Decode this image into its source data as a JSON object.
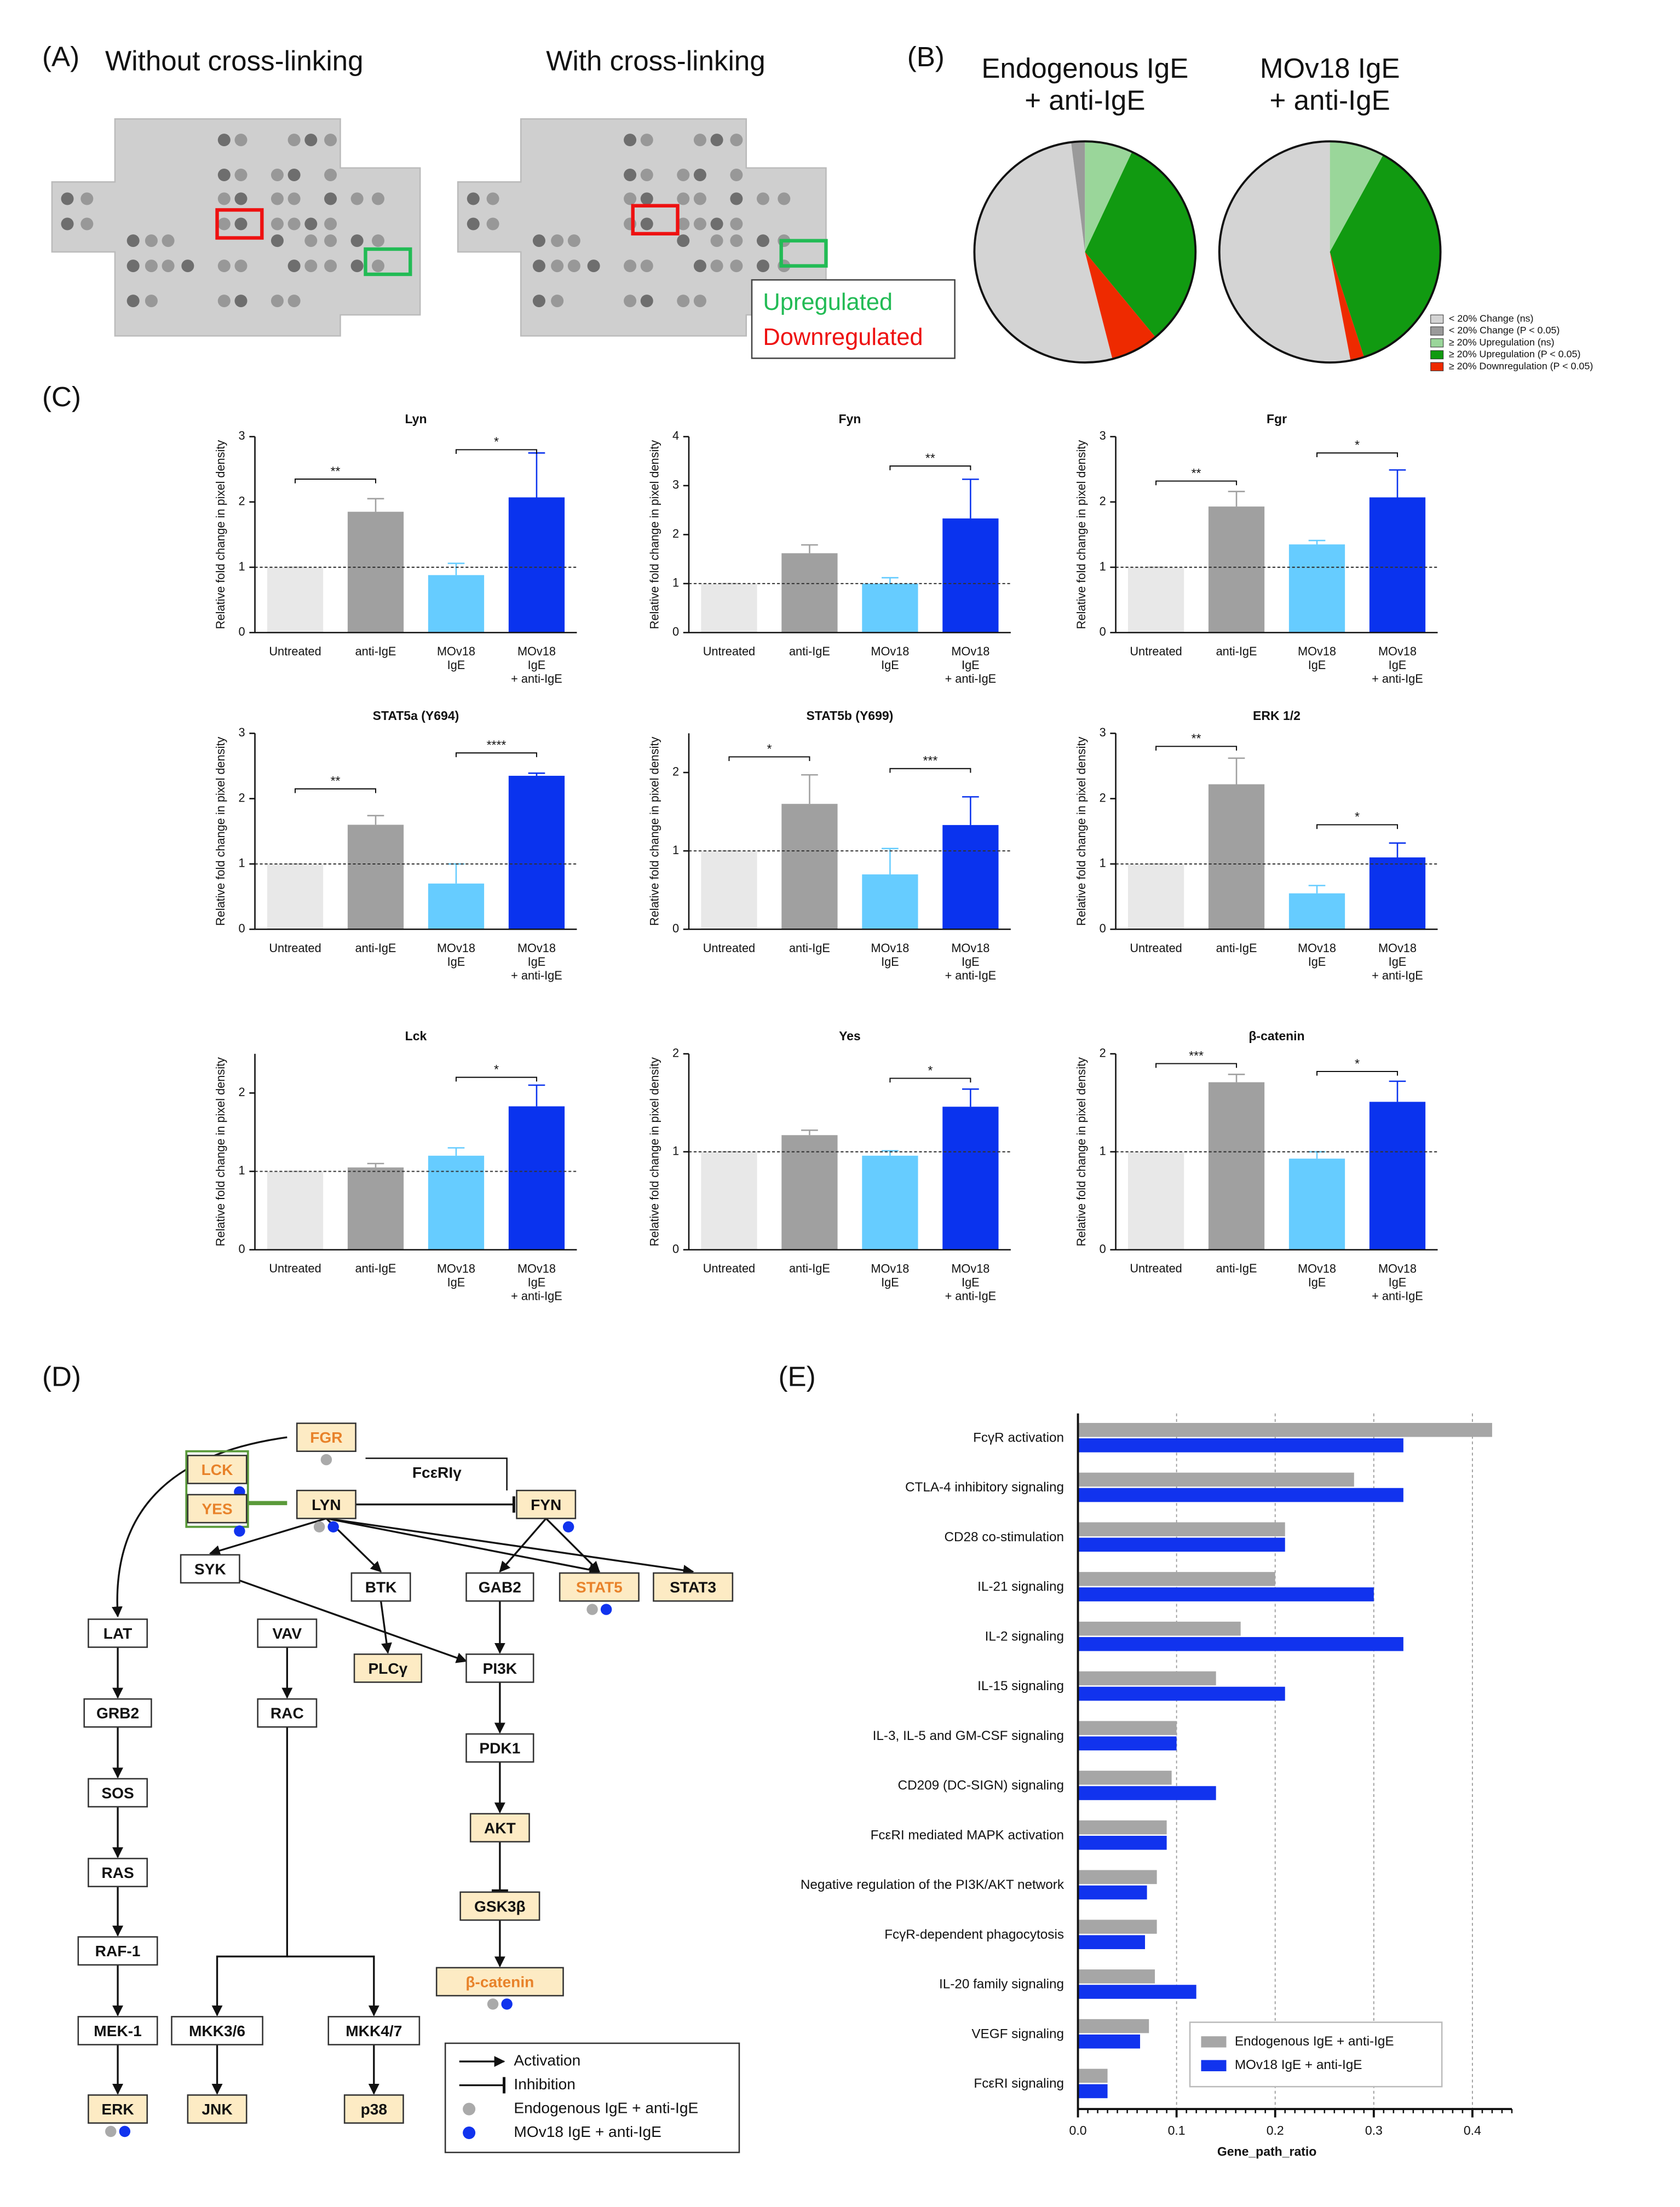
{
  "panel_labels": [
    "(A)",
    "(B)",
    "(C)",
    "(D)",
    "(E)"
  ],
  "panel_a": {
    "titles": [
      "Without cross-linking",
      "With cross-linking"
    ],
    "legend": [
      {
        "label": "Upregulated",
        "color": "#22bb55"
      },
      {
        "label": "Downregulated",
        "color": "#ee1111"
      }
    ]
  },
  "chart_data": [
    {
      "type": "pie",
      "categories": [
        "< 20% Change (ns)",
        "< 20% Change (P < 0.05)",
        "≥ 20% Upregulation (ns)",
        "≥ 20% Upregulation (P < 0.05)",
        "≥ 20% Downregulation (P < 0.05)"
      ],
      "colors": [
        "#d4d4d4",
        "#9a9a9a",
        "#9ad69a",
        "#119a11",
        "#ee2a00"
      ],
      "series": [
        {
          "name": "Endogenous IgE\n+ anti-IgE",
          "values": [
            52,
            2,
            7,
            32,
            7
          ]
        },
        {
          "name": "MOv18 IgE\n+ anti-IgE",
          "values": [
            53,
            0,
            8,
            37,
            2
          ]
        }
      ]
    },
    {
      "type": "bar",
      "title": "Lyn",
      "ylabel": "Relative fold change in pixel density",
      "categories": [
        "Untreated",
        "anti-IgE",
        "MOv18\nIgE",
        "MOv18\nIgE\n+ anti-IgE"
      ],
      "colors": [
        "#e8e8e8",
        "#a0a0a0",
        "#66ccff",
        "#0a33ee"
      ],
      "values": [
        1,
        1.85,
        0.88,
        2.07
      ],
      "errors": [
        0,
        0.2,
        0.18,
        0.68
      ],
      "ylim": [
        0,
        3
      ],
      "yticks": [
        0,
        1,
        2,
        3
      ],
      "reference_line": 1,
      "annotations": [
        {
          "between": [
            0,
            1
          ],
          "y": 2.35,
          "label": "**"
        },
        {
          "between": [
            2,
            3
          ],
          "y": 2.8,
          "label": "*"
        }
      ]
    },
    {
      "type": "bar",
      "title": "Fyn",
      "ylabel": "Relative fold change in pixel density",
      "categories": [
        "Untreated",
        "anti-IgE",
        "MOv18\nIgE",
        "MOv18\nIgE\n+ anti-IgE"
      ],
      "colors": [
        "#e8e8e8",
        "#a0a0a0",
        "#66ccff",
        "#0a33ee"
      ],
      "values": [
        1,
        1.62,
        1.0,
        2.33
      ],
      "errors": [
        0,
        0.17,
        0.12,
        0.8
      ],
      "ylim": [
        0,
        4
      ],
      "yticks": [
        0,
        1,
        2,
        3,
        4
      ],
      "reference_line": 1,
      "annotations": [
        {
          "between": [
            2,
            3
          ],
          "y": 3.4,
          "label": "**"
        }
      ]
    },
    {
      "type": "bar",
      "title": "Fgr",
      "ylabel": "Relative fold change in pixel density",
      "categories": [
        "Untreated",
        "anti-IgE",
        "MOv18\nIgE",
        "MOv18\nIgE\n+ anti-IgE"
      ],
      "colors": [
        "#e8e8e8",
        "#a0a0a0",
        "#66ccff",
        "#0a33ee"
      ],
      "values": [
        1,
        1.93,
        1.35,
        2.07
      ],
      "errors": [
        0,
        0.23,
        0.06,
        0.42
      ],
      "ylim": [
        0,
        3
      ],
      "yticks": [
        0,
        1,
        2,
        3
      ],
      "reference_line": 1,
      "annotations": [
        {
          "between": [
            0,
            1
          ],
          "y": 2.32,
          "label": "**"
        },
        {
          "between": [
            2,
            3
          ],
          "y": 2.75,
          "label": "*"
        }
      ]
    },
    {
      "type": "bar",
      "title": "STAT5a (Y694)",
      "ylabel": "Relative fold change in pixel density",
      "categories": [
        "Untreated",
        "anti-IgE",
        "MOv18\nIgE",
        "MOv18\nIgE\n+ anti-IgE"
      ],
      "colors": [
        "#e8e8e8",
        "#a0a0a0",
        "#66ccff",
        "#0a33ee"
      ],
      "values": [
        1,
        1.6,
        0.7,
        2.35
      ],
      "errors": [
        0,
        0.14,
        0.3,
        0.04
      ],
      "ylim": [
        0,
        3
      ],
      "yticks": [
        0,
        1,
        2,
        3
      ],
      "reference_line": 1,
      "annotations": [
        {
          "between": [
            0,
            1
          ],
          "y": 2.15,
          "label": "**"
        },
        {
          "between": [
            2,
            3
          ],
          "y": 2.7,
          "label": "****"
        }
      ]
    },
    {
      "type": "bar",
      "title": "STAT5b (Y699)",
      "ylabel": "Relative fold change in pixel density",
      "categories": [
        "Untreated",
        "anti-IgE",
        "MOv18\nIgE",
        "MOv18\nIgE\n+ anti-IgE"
      ],
      "colors": [
        "#e8e8e8",
        "#a0a0a0",
        "#66ccff",
        "#0a33ee"
      ],
      "values": [
        1,
        1.6,
        0.7,
        1.33
      ],
      "errors": [
        0,
        0.37,
        0.33,
        0.36
      ],
      "ylim": [
        0,
        2.5
      ],
      "yticks": [
        0,
        1,
        2
      ],
      "reference_line": 1,
      "annotations": [
        {
          "between": [
            0,
            1
          ],
          "y": 2.2,
          "label": "*"
        },
        {
          "between": [
            2,
            3
          ],
          "y": 2.05,
          "label": "***"
        }
      ]
    },
    {
      "type": "bar",
      "title": "ERK 1/2",
      "ylabel": "Relative fold change in pixel density",
      "categories": [
        "Untreated",
        "anti-IgE",
        "MOv18\nIgE",
        "MOv18\nIgE\n+ anti-IgE"
      ],
      "colors": [
        "#e8e8e8",
        "#a0a0a0",
        "#66ccff",
        "#0a33ee"
      ],
      "values": [
        1,
        2.22,
        0.55,
        1.1
      ],
      "errors": [
        0,
        0.4,
        0.12,
        0.22
      ],
      "ylim": [
        0,
        3
      ],
      "yticks": [
        0,
        1,
        2,
        3
      ],
      "reference_line": 1,
      "annotations": [
        {
          "between": [
            0,
            1
          ],
          "y": 2.8,
          "label": "**"
        },
        {
          "between": [
            2,
            3
          ],
          "y": 1.6,
          "label": "*"
        }
      ]
    },
    {
      "type": "bar",
      "title": "Lck",
      "ylabel": "Relative fold change in pixel density",
      "categories": [
        "Untreated",
        "anti-IgE",
        "MOv18\nIgE",
        "MOv18\nIgE\n+ anti-IgE"
      ],
      "colors": [
        "#e8e8e8",
        "#a0a0a0",
        "#66ccff",
        "#0a33ee"
      ],
      "values": [
        1,
        1.05,
        1.2,
        1.83
      ],
      "errors": [
        0,
        0.05,
        0.1,
        0.27
      ],
      "ylim": [
        0,
        2.5
      ],
      "yticks": [
        0,
        1,
        2
      ],
      "reference_line": 1,
      "annotations": [
        {
          "between": [
            2,
            3
          ],
          "y": 2.2,
          "label": "*"
        }
      ]
    },
    {
      "type": "bar",
      "title": "Yes",
      "ylabel": "Relative fold change in pixel density",
      "categories": [
        "Untreated",
        "anti-IgE",
        "MOv18\nIgE",
        "MOv18\nIgE\n+ anti-IgE"
      ],
      "colors": [
        "#e8e8e8",
        "#a0a0a0",
        "#66ccff",
        "#0a33ee"
      ],
      "values": [
        1,
        1.17,
        0.96,
        1.46
      ],
      "errors": [
        0,
        0.05,
        0.05,
        0.18
      ],
      "ylim": [
        0,
        2
      ],
      "yticks": [
        0,
        1,
        2
      ],
      "reference_line": 1,
      "annotations": [
        {
          "between": [
            2,
            3
          ],
          "y": 1.75,
          "label": "*"
        }
      ]
    },
    {
      "type": "bar",
      "title": "β-catenin",
      "ylabel": "Relative fold change in pixel density",
      "categories": [
        "Untreated",
        "anti-IgE",
        "MOv18\nIgE",
        "MOv18\nIgE\n+ anti-IgE"
      ],
      "colors": [
        "#e8e8e8",
        "#a0a0a0",
        "#66ccff",
        "#0a33ee"
      ],
      "values": [
        1,
        1.71,
        0.93,
        1.51
      ],
      "errors": [
        0,
        0.08,
        0.07,
        0.21
      ],
      "ylim": [
        0,
        2
      ],
      "yticks": [
        0,
        1,
        2
      ],
      "reference_line": 1,
      "annotations": [
        {
          "between": [
            0,
            1
          ],
          "y": 1.9,
          "label": "***"
        },
        {
          "between": [
            2,
            3
          ],
          "y": 1.82,
          "label": "*"
        }
      ]
    },
    {
      "type": "hbar",
      "xlabel": "Gene_path_ratio",
      "categories": [
        "FcγR activation",
        "CTLA-4 inhibitory signaling",
        "CD28 co-stimulation",
        "IL-21 signaling",
        "IL-2 signaling",
        "IL-15 signaling",
        "IL-3, IL-5 and GM-CSF signaling",
        "CD209 (DC-SIGN) signaling",
        "FcεRI mediated MAPK activation",
        "Negative regulation of the PI3K/AKT network",
        "FcγR-dependent phagocytosis",
        "IL-20 family signaling",
        "VEGF signaling",
        "FcεRI signaling"
      ],
      "series": [
        {
          "name": "Endogenous IgE + anti-IgE",
          "color": "#a6a6a6",
          "values": [
            0.42,
            0.28,
            0.21,
            0.2,
            0.165,
            0.14,
            0.1,
            0.095,
            0.09,
            0.08,
            0.08,
            0.078,
            0.072,
            0.03
          ]
        },
        {
          "name": "MOv18 IgE + anti-IgE",
          "color": "#1133ee",
          "values": [
            0.33,
            0.33,
            0.21,
            0.3,
            0.33,
            0.21,
            0.1,
            0.14,
            0.09,
            0.07,
            0.068,
            0.12,
            0.063,
            0.03
          ]
        }
      ],
      "xlim": [
        0,
        0.44
      ],
      "xticks": [
        {
          "value": 0,
          "label": "0.0"
        },
        {
          "value": 0.1,
          "label": "0.1"
        },
        {
          "value": 0.2,
          "label": "0.2"
        },
        {
          "value": 0.3,
          "label": "0.3"
        },
        {
          "value": 0.4,
          "label": "0.4"
        }
      ],
      "grid": true
    }
  ],
  "diagram": {
    "receptor_label": "FcεRIγ",
    "nodes": [
      {
        "label": "FGR",
        "highlight": true,
        "orange": true,
        "conditions": [
          0
        ]
      },
      {
        "label": "LCK",
        "highlight": true,
        "orange": true,
        "conditions": [
          1
        ]
      },
      {
        "label": "YES",
        "highlight": true,
        "orange": true,
        "conditions": [
          1
        ]
      },
      {
        "label": "LYN",
        "highlight": true,
        "orange": false,
        "conditions": [
          0,
          1
        ]
      },
      {
        "label": "FYN",
        "highlight": true,
        "orange": false,
        "conditions": [
          1
        ]
      },
      {
        "label": "SYK",
        "highlight": false,
        "orange": false,
        "conditions": []
      },
      {
        "label": "BTK",
        "highlight": false,
        "orange": false,
        "conditions": []
      },
      {
        "label": "GAB2",
        "highlight": false,
        "orange": false,
        "conditions": []
      },
      {
        "label": "STAT5",
        "highlight": true,
        "orange": true,
        "conditions": [
          0,
          1
        ]
      },
      {
        "label": "STAT3",
        "highlight": true,
        "orange": false,
        "conditions": []
      },
      {
        "label": "LAT",
        "highlight": false,
        "orange": false,
        "conditions": []
      },
      {
        "label": "VAV",
        "highlight": false,
        "orange": false,
        "conditions": []
      },
      {
        "label": "PLCγ",
        "highlight": true,
        "orange": false,
        "conditions": []
      },
      {
        "label": "PI3K",
        "highlight": false,
        "orange": false,
        "conditions": []
      },
      {
        "label": "GRB2",
        "highlight": false,
        "orange": false,
        "conditions": []
      },
      {
        "label": "RAC",
        "highlight": false,
        "orange": false,
        "conditions": []
      },
      {
        "label": "PDK1",
        "highlight": false,
        "orange": false,
        "conditions": []
      },
      {
        "label": "SOS",
        "highlight": false,
        "orange": false,
        "conditions": []
      },
      {
        "label": "AKT",
        "highlight": true,
        "orange": false,
        "conditions": []
      },
      {
        "label": "RAS",
        "highlight": false,
        "orange": false,
        "conditions": []
      },
      {
        "label": "GSK3β",
        "highlight": true,
        "orange": false,
        "conditions": []
      },
      {
        "label": "RAF-1",
        "highlight": false,
        "orange": false,
        "conditions": []
      },
      {
        "label": "β-catenin",
        "highlight": true,
        "orange": true,
        "conditions": [
          0,
          1
        ]
      },
      {
        "label": "MEK-1",
        "highlight": false,
        "orange": false,
        "conditions": []
      },
      {
        "label": "MKK3/6",
        "highlight": false,
        "orange": false,
        "conditions": []
      },
      {
        "label": "MKK4/7",
        "highlight": false,
        "orange": false,
        "conditions": []
      },
      {
        "label": "ERK",
        "highlight": true,
        "orange": false,
        "conditions": [
          0,
          1
        ]
      },
      {
        "label": "JNK",
        "highlight": true,
        "orange": false,
        "conditions": []
      },
      {
        "label": "p38",
        "highlight": true,
        "orange": false,
        "conditions": []
      }
    ],
    "legend": [
      "Activation",
      "Inhibition",
      "Endogenous IgE + anti-IgE",
      "MOv18 IgE + anti-IgE"
    ],
    "condition_colors": [
      "#aaaaaa",
      "#1133ee"
    ]
  }
}
